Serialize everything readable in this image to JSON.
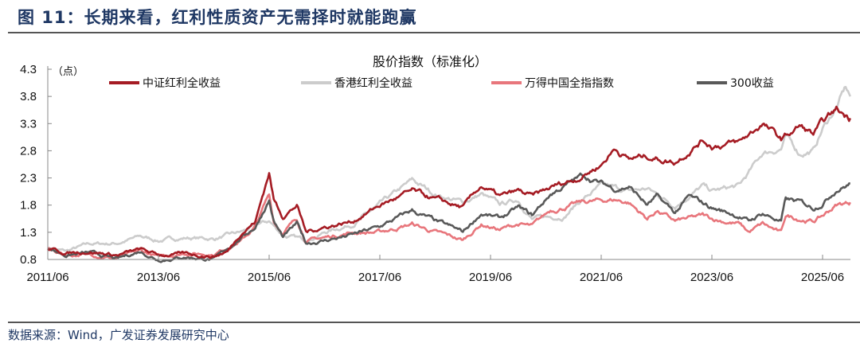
{
  "figure_title": "图 11：长期来看，红利性质资产无需择时就能跑赢",
  "source": "数据来源：Wind，广发证券发展研究中心",
  "chart_data": {
    "type": "line",
    "title": "股价指数（标准化）",
    "ylabel": "（点）",
    "xlabel": "",
    "ylim": [
      0.8,
      4.3
    ],
    "yticks": [
      "0.8",
      "1.3",
      "1.8",
      "2.3",
      "2.8",
      "3.3",
      "3.8",
      "4.3"
    ],
    "xticks": [
      "2011/06",
      "2013/06",
      "2015/06",
      "2017/06",
      "2019/06",
      "2021/06",
      "2023/06",
      "2025/06"
    ],
    "xlim": [
      "2011-06",
      "2025-12"
    ],
    "grid": false,
    "legend": "top",
    "series": [
      {
        "name": "中证红利全收益",
        "color": "#a51c24",
        "points": [
          [
            "2011-06",
            1.0
          ],
          [
            "2011-10",
            0.92
          ],
          [
            "2012-03",
            0.95
          ],
          [
            "2012-09",
            0.88
          ],
          [
            "2013-02",
            0.98
          ],
          [
            "2013-06",
            0.88
          ],
          [
            "2013-12",
            0.9
          ],
          [
            "2014-06",
            0.86
          ],
          [
            "2014-09",
            0.95
          ],
          [
            "2014-12",
            1.3
          ],
          [
            "2015-03",
            1.5
          ],
          [
            "2015-06",
            2.4
          ],
          [
            "2015-07",
            1.9
          ],
          [
            "2015-09",
            1.6
          ],
          [
            "2015-12",
            1.8
          ],
          [
            "2016-02",
            1.3
          ],
          [
            "2016-06",
            1.4
          ],
          [
            "2016-12",
            1.5
          ],
          [
            "2017-06",
            1.8
          ],
          [
            "2018-01",
            2.05
          ],
          [
            "2018-06",
            1.9
          ],
          [
            "2018-12",
            1.75
          ],
          [
            "2019-04",
            2.15
          ],
          [
            "2019-08",
            1.95
          ],
          [
            "2019-12",
            2.05
          ],
          [
            "2020-03",
            1.95
          ],
          [
            "2020-08",
            2.15
          ],
          [
            "2021-01",
            2.3
          ],
          [
            "2021-06",
            2.55
          ],
          [
            "2021-09",
            2.85
          ],
          [
            "2021-12",
            2.65
          ],
          [
            "2022-04",
            2.7
          ],
          [
            "2022-10",
            2.6
          ],
          [
            "2023-04",
            3.0
          ],
          [
            "2023-06",
            2.9
          ],
          [
            "2023-12",
            2.95
          ],
          [
            "2024-05",
            3.3
          ],
          [
            "2024-09",
            3.0
          ],
          [
            "2025-01",
            3.25
          ],
          [
            "2025-04",
            3.1
          ],
          [
            "2025-06",
            3.3
          ],
          [
            "2025-09",
            3.55
          ],
          [
            "2025-12",
            3.4
          ]
        ]
      },
      {
        "name": "香港红利全收益",
        "color": "#cccccc",
        "points": [
          [
            "2011-06",
            1.0
          ],
          [
            "2011-10",
            0.95
          ],
          [
            "2012-03",
            1.08
          ],
          [
            "2012-09",
            1.1
          ],
          [
            "2013-02",
            1.22
          ],
          [
            "2013-06",
            1.15
          ],
          [
            "2013-12",
            1.2
          ],
          [
            "2014-06",
            1.18
          ],
          [
            "2014-12",
            1.3
          ],
          [
            "2015-04",
            1.45
          ],
          [
            "2015-06",
            1.5
          ],
          [
            "2015-09",
            1.25
          ],
          [
            "2016-02",
            1.15
          ],
          [
            "2016-06",
            1.3
          ],
          [
            "2016-12",
            1.45
          ],
          [
            "2017-06",
            1.8
          ],
          [
            "2018-01",
            2.25
          ],
          [
            "2018-06",
            2.0
          ],
          [
            "2018-12",
            1.85
          ],
          [
            "2019-04",
            2.0
          ],
          [
            "2019-08",
            1.8
          ],
          [
            "2019-12",
            1.9
          ],
          [
            "2020-03",
            1.55
          ],
          [
            "2020-10",
            1.6
          ],
          [
            "2021-01",
            1.85
          ],
          [
            "2021-06",
            2.15
          ],
          [
            "2021-12",
            2.05
          ],
          [
            "2022-04",
            2.1
          ],
          [
            "2022-10",
            1.8
          ],
          [
            "2023-04",
            2.15
          ],
          [
            "2023-06",
            2.05
          ],
          [
            "2023-12",
            2.15
          ],
          [
            "2024-05",
            2.75
          ],
          [
            "2024-09",
            2.85
          ],
          [
            "2024-10",
            3.05
          ],
          [
            "2025-01",
            2.75
          ],
          [
            "2025-04",
            2.8
          ],
          [
            "2025-06",
            3.2
          ],
          [
            "2025-09",
            3.6
          ],
          [
            "2025-11",
            3.95
          ],
          [
            "2025-12",
            3.8
          ]
        ]
      },
      {
        "name": "万得中国全指指数",
        "color": "#e8767c",
        "points": [
          [
            "2011-06",
            1.0
          ],
          [
            "2011-10",
            0.88
          ],
          [
            "2012-03",
            0.9
          ],
          [
            "2012-09",
            0.82
          ],
          [
            "2013-02",
            0.95
          ],
          [
            "2013-06",
            0.85
          ],
          [
            "2013-12",
            0.92
          ],
          [
            "2014-06",
            0.9
          ],
          [
            "2014-12",
            1.15
          ],
          [
            "2015-03",
            1.4
          ],
          [
            "2015-06",
            2.0
          ],
          [
            "2015-07",
            1.5
          ],
          [
            "2015-09",
            1.3
          ],
          [
            "2015-12",
            1.55
          ],
          [
            "2016-02",
            1.15
          ],
          [
            "2016-06",
            1.2
          ],
          [
            "2016-12",
            1.3
          ],
          [
            "2017-06",
            1.3
          ],
          [
            "2018-01",
            1.45
          ],
          [
            "2018-06",
            1.3
          ],
          [
            "2018-12",
            1.15
          ],
          [
            "2019-04",
            1.45
          ],
          [
            "2019-08",
            1.35
          ],
          [
            "2019-12",
            1.45
          ],
          [
            "2020-03",
            1.4
          ],
          [
            "2020-07",
            1.7
          ],
          [
            "2021-02",
            1.85
          ],
          [
            "2021-09",
            1.9
          ],
          [
            "2021-12",
            1.85
          ],
          [
            "2022-04",
            1.55
          ],
          [
            "2022-06",
            1.7
          ],
          [
            "2022-10",
            1.5
          ],
          [
            "2023-04",
            1.6
          ],
          [
            "2023-06",
            1.55
          ],
          [
            "2023-12",
            1.45
          ],
          [
            "2024-02",
            1.3
          ],
          [
            "2024-05",
            1.45
          ],
          [
            "2024-09",
            1.28
          ],
          [
            "2024-10",
            1.6
          ],
          [
            "2025-01",
            1.55
          ],
          [
            "2025-04",
            1.5
          ],
          [
            "2025-06",
            1.6
          ],
          [
            "2025-09",
            1.8
          ],
          [
            "2025-12",
            1.85
          ]
        ]
      },
      {
        "name": "300收益",
        "color": "#595959",
        "points": [
          [
            "2011-06",
            1.0
          ],
          [
            "2011-10",
            0.88
          ],
          [
            "2012-03",
            0.92
          ],
          [
            "2012-09",
            0.8
          ],
          [
            "2013-02",
            0.95
          ],
          [
            "2013-06",
            0.8
          ],
          [
            "2013-12",
            0.85
          ],
          [
            "2014-06",
            0.8
          ],
          [
            "2014-12",
            1.2
          ],
          [
            "2015-03",
            1.4
          ],
          [
            "2015-06",
            1.9
          ],
          [
            "2015-07",
            1.5
          ],
          [
            "2015-09",
            1.2
          ],
          [
            "2015-12",
            1.45
          ],
          [
            "2016-02",
            1.1
          ],
          [
            "2016-06",
            1.15
          ],
          [
            "2016-12",
            1.25
          ],
          [
            "2017-06",
            1.4
          ],
          [
            "2018-01",
            1.7
          ],
          [
            "2018-06",
            1.5
          ],
          [
            "2018-12",
            1.3
          ],
          [
            "2019-04",
            1.65
          ],
          [
            "2019-08",
            1.55
          ],
          [
            "2019-12",
            1.75
          ],
          [
            "2020-03",
            1.6
          ],
          [
            "2020-07",
            2.0
          ],
          [
            "2021-02",
            2.35
          ],
          [
            "2021-06",
            2.2
          ],
          [
            "2021-09",
            2.1
          ],
          [
            "2021-12",
            2.15
          ],
          [
            "2022-04",
            1.8
          ],
          [
            "2022-06",
            1.95
          ],
          [
            "2022-10",
            1.65
          ],
          [
            "2023-01",
            1.95
          ],
          [
            "2023-06",
            1.75
          ],
          [
            "2023-12",
            1.6
          ],
          [
            "2024-02",
            1.5
          ],
          [
            "2024-05",
            1.65
          ],
          [
            "2024-09",
            1.5
          ],
          [
            "2024-10",
            1.9
          ],
          [
            "2025-01",
            1.85
          ],
          [
            "2025-04",
            1.75
          ],
          [
            "2025-06",
            1.85
          ],
          [
            "2025-09",
            2.1
          ],
          [
            "2025-12",
            2.2
          ]
        ]
      }
    ]
  }
}
